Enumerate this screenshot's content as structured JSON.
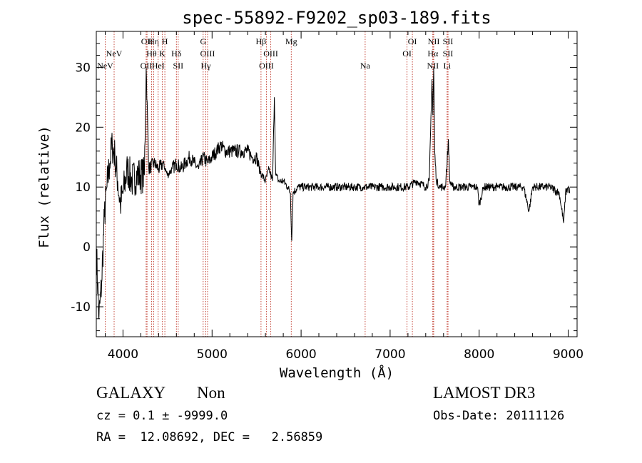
{
  "chart_data": {
    "type": "line",
    "title": "spec-55892-F9202_sp03-189.fits",
    "xlabel": "Wavelength (Å)",
    "ylabel": "Flux (relative)",
    "xlim": [
      3700,
      9100
    ],
    "ylim": [
      -15,
      36
    ],
    "xticks": [
      4000,
      5000,
      6000,
      7000,
      8000,
      9000
    ],
    "yticks": [
      -10,
      0,
      10,
      20,
      30
    ],
    "grid": false,
    "series": [
      {
        "name": "spectrum",
        "x": [
          3700,
          3730,
          3760,
          3790,
          3820,
          3850,
          3880,
          3910,
          3940,
          3970,
          4000,
          4050,
          4100,
          4150,
          4200,
          4240,
          4260,
          4290,
          4350,
          4400,
          4450,
          4500,
          4550,
          4600,
          4650,
          4700,
          4750,
          4800,
          4850,
          4900,
          4950,
          5000,
          5050,
          5100,
          5150,
          5200,
          5250,
          5300,
          5350,
          5400,
          5450,
          5500,
          5530,
          5560,
          5600,
          5640,
          5680,
          5700,
          5715,
          5750,
          5800,
          5850,
          5880,
          5895,
          5910,
          5960,
          6000,
          6100,
          6200,
          6300,
          6400,
          6500,
          6600,
          6700,
          6800,
          6900,
          7000,
          7100,
          7200,
          7300,
          7400,
          7440,
          7470,
          7480,
          7490,
          7500,
          7520,
          7560,
          7600,
          7620,
          7640,
          7655,
          7670,
          7700,
          7800,
          7900,
          7980,
          8000,
          8050,
          8100,
          8200,
          8300,
          8400,
          8500,
          8560,
          8600,
          8700,
          8800,
          8900,
          8950,
          8970,
          9000,
          9020
        ],
        "y": [
          0,
          -12,
          -6,
          5,
          10,
          14,
          17,
          15,
          11,
          7,
          9,
          13,
          11,
          12,
          12,
          12,
          30,
          13,
          14,
          13,
          14,
          12,
          13,
          14,
          13,
          14,
          15,
          14,
          13,
          15,
          14,
          15,
          16,
          17,
          16,
          16,
          16,
          16,
          16,
          16,
          15,
          15,
          13,
          12,
          11,
          13,
          11,
          25,
          12,
          11,
          11,
          10,
          9,
          1,
          9,
          10,
          10,
          10,
          10,
          10,
          10,
          10,
          10,
          10,
          10,
          10,
          10,
          10,
          10,
          11,
          10,
          11,
          28,
          22,
          30,
          16,
          11,
          10,
          10,
          10,
          14,
          18,
          11,
          10,
          10,
          10,
          10,
          7,
          10,
          10,
          10,
          10,
          10,
          10,
          6,
          10,
          10,
          10,
          9,
          4,
          9,
          10,
          9
        ]
      }
    ],
    "lines": [
      {
        "name": "NeV",
        "wl": 3800,
        "row": 2
      },
      {
        "name": "NeV",
        "wl": 3900,
        "row": 1
      },
      {
        "name": "OII",
        "wl": 4270,
        "row": 0
      },
      {
        "name": "OII",
        "wl": 4260,
        "row": 2
      },
      {
        "name": "Hη",
        "wl": 4345,
        "row": 0
      },
      {
        "name": "Hθ",
        "wl": 4320,
        "row": 1
      },
      {
        "name": "HeI",
        "wl": 4395,
        "row": 2
      },
      {
        "name": "H",
        "wl": 4470,
        "row": 0
      },
      {
        "name": "K",
        "wl": 4440,
        "row": 1
      },
      {
        "name": "Hδ",
        "wl": 4600,
        "row": 1
      },
      {
        "name": "SII",
        "wl": 4620,
        "row": 2
      },
      {
        "name": "G",
        "wl": 4900,
        "row": 0
      },
      {
        "name": "OIII",
        "wl": 4950,
        "row": 1
      },
      {
        "name": "Hγ",
        "wl": 4930,
        "row": 2
      },
      {
        "name": "Hβ",
        "wl": 5550,
        "row": 0
      },
      {
        "name": "OIII",
        "wl": 5660,
        "row": 1
      },
      {
        "name": "OIII",
        "wl": 5610,
        "row": 2
      },
      {
        "name": "Mg",
        "wl": 5890,
        "row": 0
      },
      {
        "name": "Na",
        "wl": 6720,
        "row": 2
      },
      {
        "name": "OI",
        "wl": 7250,
        "row": 0
      },
      {
        "name": "OI",
        "wl": 7190,
        "row": 1
      },
      {
        "name": "NII",
        "wl": 7490,
        "row": 0
      },
      {
        "name": "Hα",
        "wl": 7480,
        "row": 1
      },
      {
        "name": "NII",
        "wl": 7480,
        "row": 2
      },
      {
        "name": "SII",
        "wl": 7650,
        "row": 0
      },
      {
        "name": "SII",
        "wl": 7650,
        "row": 1
      },
      {
        "name": "Li",
        "wl": 7640,
        "row": 2
      }
    ]
  },
  "footer": {
    "class_label": "GALAXY",
    "subclass_label": "Non",
    "survey_label": "LAMOST DR3",
    "cz_text": "cz = 0.1 ± -9999.0",
    "obs_date_text": "Obs-Date: 20111126",
    "radec_text": "RA =  12.08692, DEC =   2.56859"
  }
}
